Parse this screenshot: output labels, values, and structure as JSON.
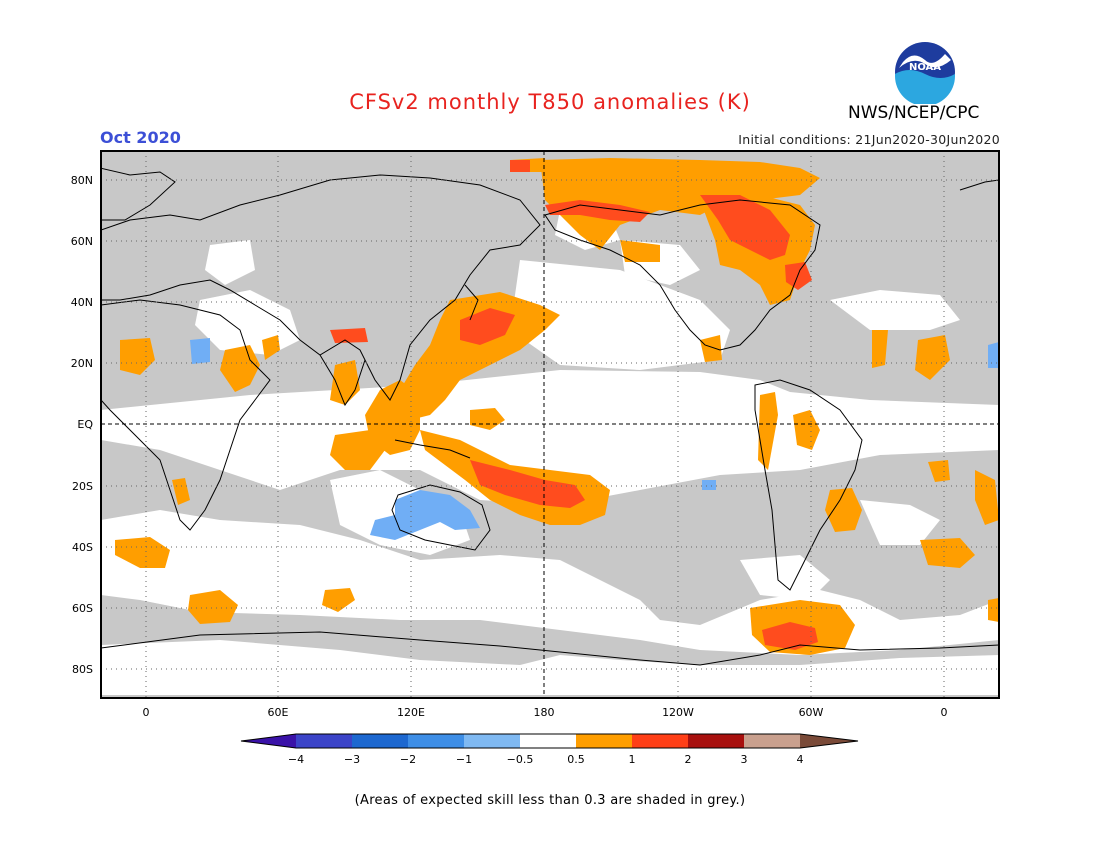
{
  "header": {
    "title": "CFSv2 monthly T850 anomalies (K)",
    "period": "Oct 2020",
    "initial_conditions": "Initial conditions: 21Jun2020-30Jun2020",
    "agency": "NWS/NCEP/CPC",
    "logo_text": "NOAA"
  },
  "map": {
    "projection": "cylindrical equidistant, centered 180",
    "lat_labels": [
      "80N",
      "60N",
      "40N",
      "20N",
      "EQ",
      "20S",
      "40S",
      "60S",
      "80S"
    ],
    "lon_labels": [
      "0",
      "60E",
      "120E",
      "180",
      "120W",
      "60W",
      "0"
    ],
    "grid": "dotted",
    "colors": {
      "grey_low_skill": "#c8c8c8",
      "neutral": "#ffffff",
      "warm_0_5_1": "#ff9e00",
      "warm_1_2": "#ff4c1e",
      "cool_minus1_minus0_5": "#70aef5"
    }
  },
  "colorbar": {
    "tick_labels": [
      "−4",
      "−3",
      "−2",
      "−1",
      "−0.5",
      "0.5",
      "1",
      "2",
      "3",
      "4"
    ],
    "colors": [
      "#3a12a8",
      "#3b44c8",
      "#1d68d0",
      "#3e8ee6",
      "#7fb9f2",
      "#ffffff",
      "#ff9e00",
      "#ff3f17",
      "#a8100e",
      "#c9a08e",
      "#7a4a38"
    ]
  },
  "footnote": "(Areas of expected skill less than 0.3 are shaded in grey.)"
}
